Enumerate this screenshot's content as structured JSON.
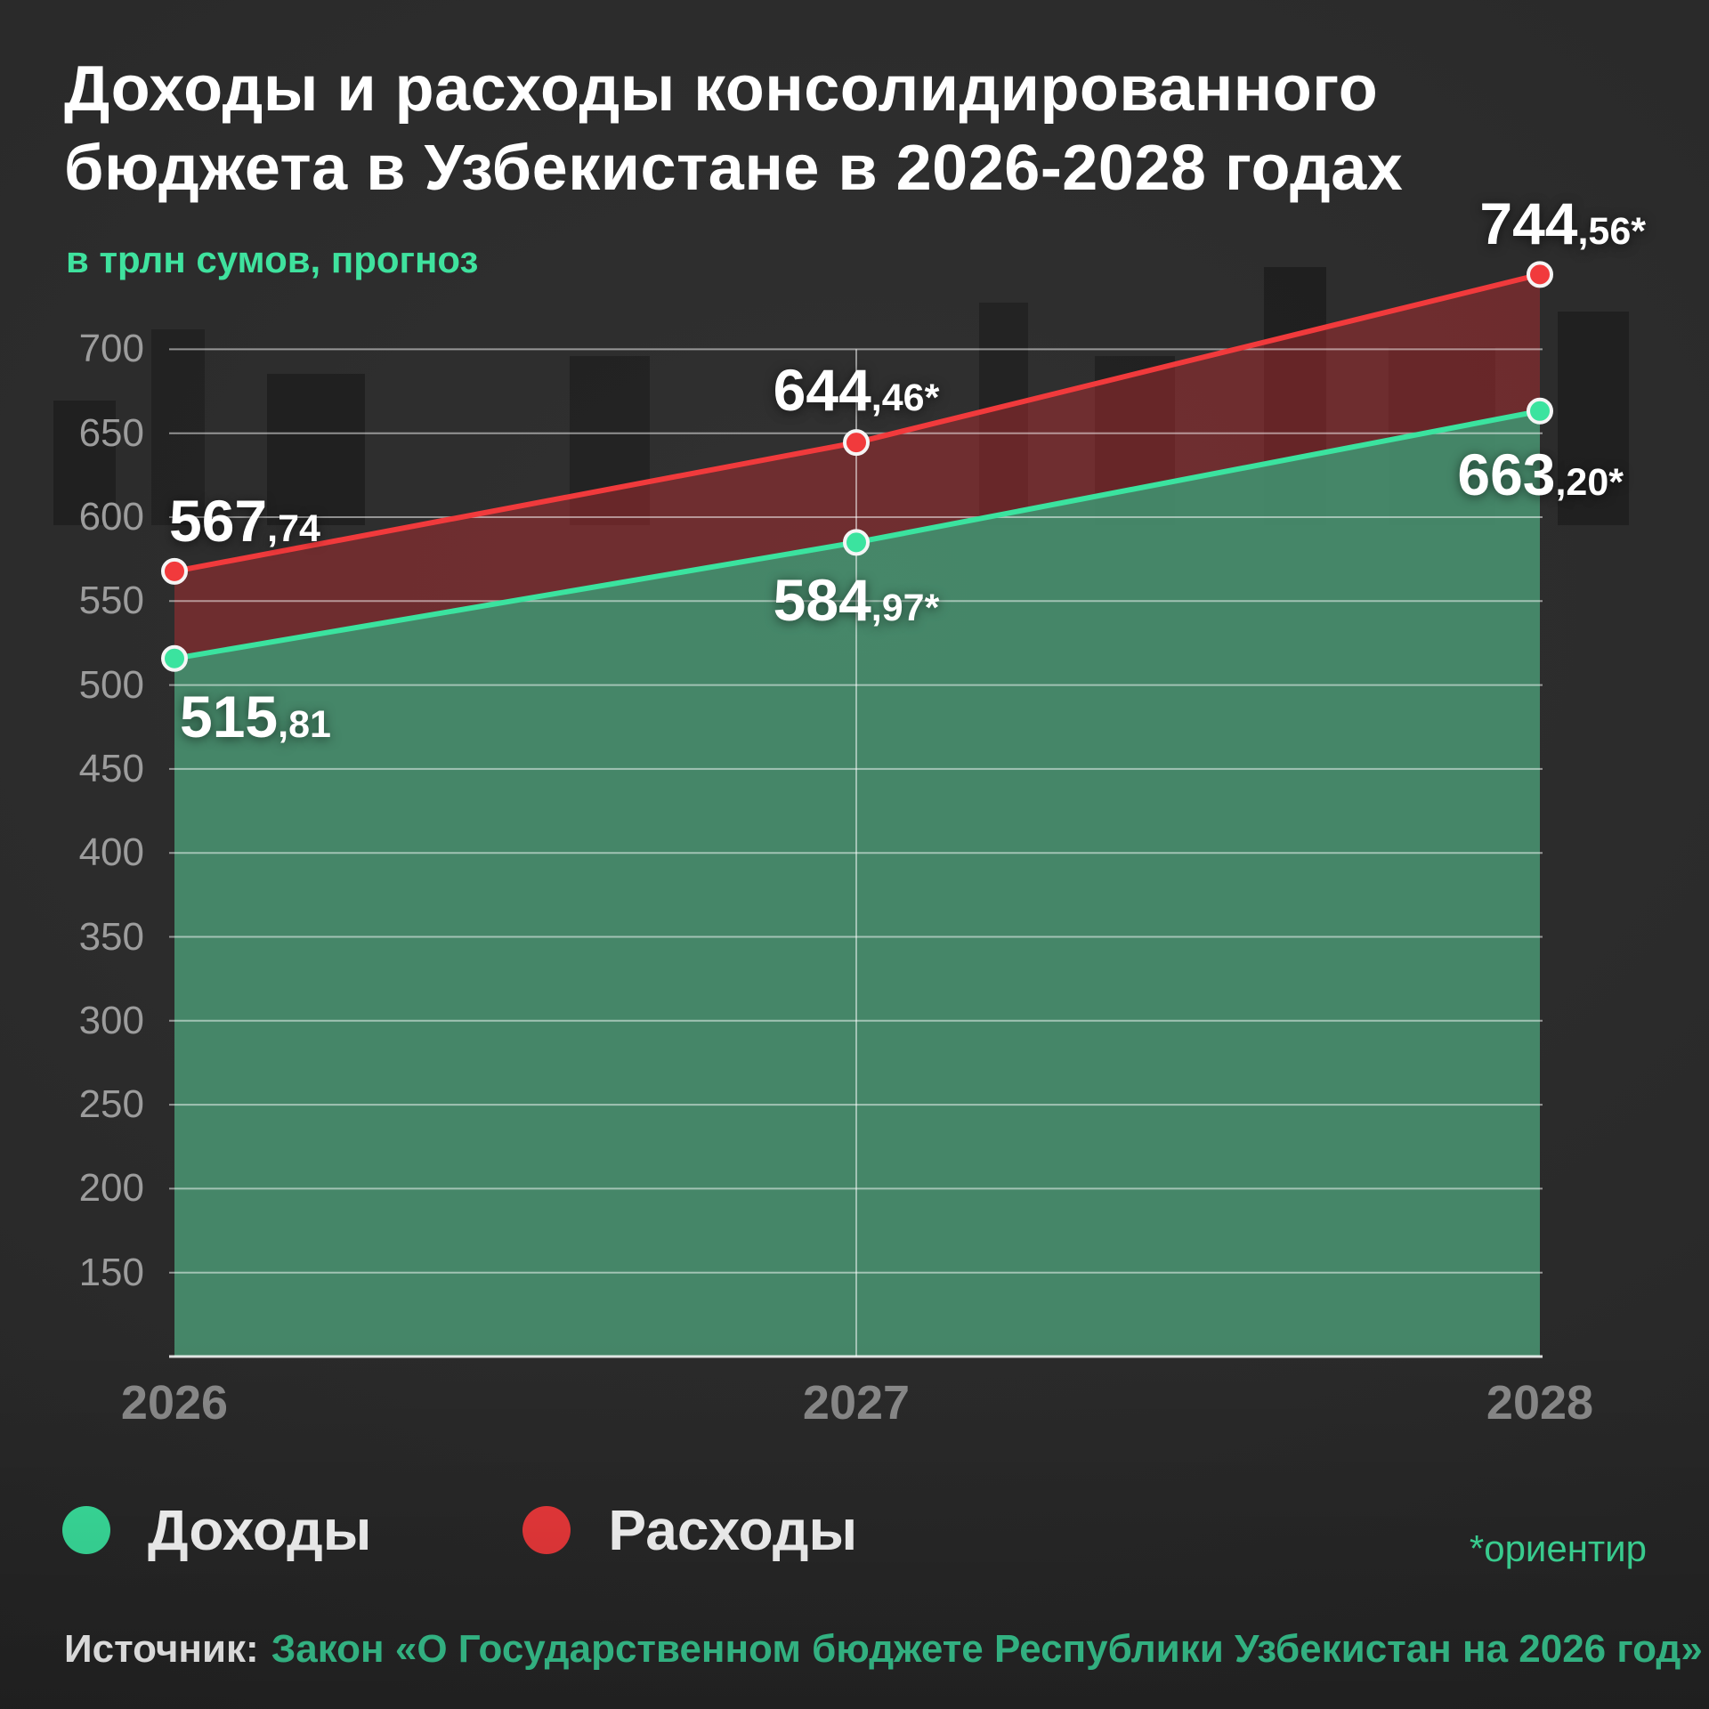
{
  "header": {
    "title_line1": "Доходы и расходы консолидированного",
    "title_line2": "бюджета в Узбекистане в 2026-2028 годах",
    "subtitle": "в трлн сумов, прогноз"
  },
  "chart_data": {
    "type": "line",
    "title": "Доходы и расходы консолидированного бюджета в Узбекистане в 2026-2028 годах",
    "unit": "трлн сумов",
    "unit_note": "в трлн сумов, прогноз",
    "x_labels": [
      "2026",
      "2027",
      "2028"
    ],
    "yticks": [
      700,
      650,
      600,
      550,
      500,
      450,
      400,
      350,
      300,
      250,
      200,
      150
    ],
    "ylim": [
      100,
      780
    ],
    "grid": true,
    "legend_position": "bottom",
    "series": [
      {
        "key": "income",
        "name": "Доходы",
        "color": "#3be39f",
        "values": [
          515.81,
          584.97,
          663.2
        ],
        "point_labels": [
          "515,81",
          "584,97*",
          "663,20*"
        ]
      },
      {
        "key": "expenses",
        "name": "Расходы",
        "color": "#f13a3c",
        "values": [
          567.74,
          644.46,
          744.56
        ],
        "point_labels": [
          "567,74",
          "644,46*",
          "744,56*"
        ]
      }
    ]
  },
  "legend": {
    "items": [
      {
        "key": "income",
        "label": "Доходы",
        "color": "#3be39f"
      },
      {
        "key": "expenses",
        "label": "Расходы",
        "color": "#f13a3c"
      }
    ],
    "note": "*ориентир"
  },
  "footer": {
    "source_label": "Источник:",
    "source_text": "Закон «О Государственном бюджете Республики Узбекистан на 2026 год»"
  },
  "colors": {
    "background": "#2c2c2c",
    "accent_green": "#3be39f",
    "accent_red": "#f13a3c",
    "income_fill": "rgba(72,142,110,0.92)",
    "expenses_fill": "rgba(200,45,50,0.42)",
    "grid_line": "rgba(255,255,255,0.5)",
    "axis_text": "#9c9c9c"
  }
}
